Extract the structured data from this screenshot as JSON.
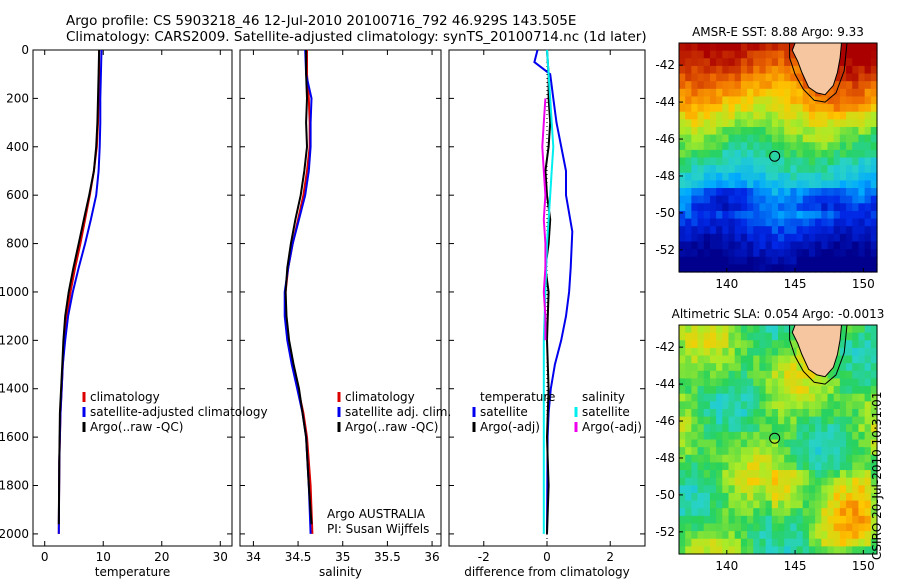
{
  "header": {
    "line1": "Argo profile: CS 5903218_46 12-Jul-2010 20100716_792 46.929S 143.505E",
    "line2": "Climatology: CARS2009. Satellite-adjusted climatology: synTS_20100714.nc (1d later)"
  },
  "side_label": "CSIRO 20-Jul-2010 10:31:01",
  "colors": {
    "clim": "#dd0000",
    "sat": "#0000ee",
    "argo": "#000000",
    "cyan": "#00eeee",
    "magenta": "#ee00ee"
  },
  "chart_data": [
    {
      "id": "temp",
      "type": "line",
      "xlabel": "temperature",
      "ylabel": "",
      "xlim": [
        -2,
        32
      ],
      "ylim": [
        2050,
        0
      ],
      "xticks": [
        "0",
        "10",
        "20",
        "30"
      ],
      "yticks": [
        "0",
        "200",
        "400",
        "600",
        "800",
        "1000",
        "1200",
        "1400",
        "1600",
        "1800",
        "2000"
      ],
      "legend": [
        "climatology",
        "satellite-adjusted climatology",
        "Argo(..raw -QC)"
      ],
      "series": [
        {
          "name": "climatology",
          "color": "clim",
          "x": [
            9.3,
            9.3,
            9.2,
            9.1,
            8.9,
            8.4,
            7.7,
            6.9,
            6.1,
            5.2,
            4.4,
            3.8,
            3.4,
            3.1,
            2.9,
            2.7,
            2.5,
            2.4
          ],
          "y": [
            0,
            100,
            200,
            300,
            400,
            500,
            600,
            700,
            800,
            900,
            1000,
            1100,
            1200,
            1300,
            1400,
            1500,
            1700,
            2000
          ]
        },
        {
          "name": "satellite",
          "color": "sat",
          "x": [
            9.7,
            9.6,
            9.5,
            9.5,
            9.4,
            9.2,
            8.8,
            7.9,
            6.9,
            5.8,
            4.8,
            4.0,
            3.5,
            3.1,
            2.9,
            2.7,
            2.5,
            2.4
          ],
          "y": [
            0,
            100,
            200,
            300,
            400,
            500,
            600,
            700,
            800,
            900,
            1000,
            1100,
            1200,
            1300,
            1400,
            1500,
            1700,
            2000
          ]
        },
        {
          "name": "argo",
          "color": "argo",
          "x": [
            9.3,
            9.2,
            9.1,
            9.0,
            8.8,
            8.4,
            7.6,
            6.7,
            5.8,
            4.9,
            4.1,
            3.5,
            3.2,
            3.0,
            2.8,
            2.6,
            2.5,
            2.4
          ],
          "y": [
            0,
            100,
            200,
            300,
            400,
            500,
            600,
            700,
            800,
            900,
            1000,
            1100,
            1200,
            1300,
            1400,
            1500,
            1700,
            1960
          ]
        }
      ]
    },
    {
      "id": "sal",
      "type": "line",
      "xlabel": "salinity",
      "ylabel": "",
      "xlim": [
        33.85,
        36.1
      ],
      "ylim": [
        2050,
        0
      ],
      "xticks": [
        "34",
        "34.5",
        "35",
        "35.5",
        "36"
      ],
      "legend": [
        "climatology",
        "satellite adj. clim.",
        "Argo(..raw -QC)"
      ],
      "annotations": [
        "Argo AUSTRALIA",
        "PI: Susan Wijffels"
      ],
      "series": [
        {
          "name": "climatology",
          "color": "clim",
          "x": [
            34.6,
            34.6,
            34.62,
            34.63,
            34.63,
            34.6,
            34.56,
            34.5,
            34.44,
            34.39,
            34.36,
            34.36,
            34.39,
            34.44,
            34.5,
            34.56,
            34.6,
            34.64,
            34.66
          ],
          "y": [
            0,
            100,
            200,
            300,
            400,
            500,
            600,
            700,
            800,
            900,
            1000,
            1100,
            1200,
            1300,
            1400,
            1500,
            1600,
            1800,
            2000
          ]
        },
        {
          "name": "satellite",
          "color": "sat",
          "x": [
            34.58,
            34.59,
            34.65,
            34.64,
            34.64,
            34.62,
            34.58,
            34.51,
            34.44,
            34.39,
            34.35,
            34.35,
            34.38,
            34.43,
            34.49,
            34.55,
            34.59,
            34.62,
            34.64
          ],
          "y": [
            0,
            100,
            200,
            300,
            400,
            500,
            600,
            700,
            800,
            900,
            1000,
            1100,
            1200,
            1300,
            1400,
            1500,
            1600,
            1800,
            2000
          ]
        },
        {
          "name": "argo",
          "color": "argo",
          "x": [
            34.59,
            34.59,
            34.6,
            34.59,
            34.6,
            34.57,
            34.53,
            34.47,
            34.42,
            34.38,
            34.36,
            34.37,
            34.4,
            34.45,
            34.51,
            34.55,
            34.59,
            34.62,
            34.65
          ],
          "y": [
            0,
            100,
            200,
            300,
            400,
            500,
            600,
            700,
            800,
            900,
            1000,
            1100,
            1200,
            1300,
            1400,
            1500,
            1600,
            1800,
            1960
          ]
        }
      ]
    },
    {
      "id": "diff",
      "type": "line",
      "xlabel": "difference from climatology",
      "ylabel": "",
      "xlim": [
        -3.1,
        3.1
      ],
      "ylim": [
        2050,
        0
      ],
      "xticks": [
        "-2",
        "0",
        "2"
      ],
      "legend_left": [
        "temperature",
        "satellite",
        "Argo(-adj)"
      ],
      "legend_right": [
        "salinity",
        "satellite",
        "Argo(-adj)"
      ],
      "series": [
        {
          "name": "temperature satellite",
          "color": "sat",
          "x": [
            -0.3,
            -0.4,
            0.1,
            0.2,
            0.3,
            0.6,
            0.6,
            0.8,
            0.75,
            0.7,
            0.6,
            0.45,
            0.25,
            0.12,
            0.05,
            0.02,
            0.01,
            0.0
          ],
          "y": [
            0,
            50,
            100,
            200,
            300,
            500,
            600,
            750,
            900,
            1000,
            1100,
            1200,
            1300,
            1400,
            1500,
            1600,
            1800,
            2000
          ]
        },
        {
          "name": "temperature Argo",
          "color": "argo",
          "x": [
            0.0,
            0.05,
            0.05,
            0.1,
            0.05,
            -0.05,
            0.0,
            0.1,
            0.05,
            -0.05,
            0.05,
            0.0,
            0.05,
            0.0,
            0.05,
            0.0
          ],
          "y": [
            0,
            100,
            200,
            300,
            400,
            500,
            600,
            700,
            800,
            900,
            1000,
            1200,
            1400,
            1600,
            1800,
            2000
          ]
        },
        {
          "name": "salinity satellite",
          "color": "cyan",
          "x": [
            0.0,
            0.05,
            0.1,
            0.15,
            0.2,
            0.15,
            0.1,
            0.05,
            0.0,
            -0.05,
            -0.1,
            -0.1,
            -0.1,
            -0.1
          ],
          "y": [
            0,
            100,
            200,
            300,
            400,
            500,
            600,
            700,
            800,
            1000,
            1200,
            1400,
            1600,
            2000
          ]
        },
        {
          "name": "salinity Argo",
          "color": "magenta",
          "x": [
            -0.05,
            -0.1,
            -0.15,
            -0.1,
            -0.05,
            -0.1,
            -0.05,
            -0.05,
            -0.1,
            -0.05,
            -0.05
          ],
          "y": [
            200,
            300,
            400,
            500,
            600,
            700,
            800,
            900,
            1000,
            1100,
            1200
          ]
        }
      ]
    },
    {
      "id": "sst",
      "type": "heatmap",
      "title": "AMSR-E SST: 8.88 Argo: 9.33",
      "xlim": [
        136.5,
        151.0
      ],
      "ylim": [
        -53.2,
        -40.8
      ],
      "xticks": [
        "140",
        "145",
        "150"
      ],
      "yticks": [
        "-42",
        "-44",
        "-46",
        "-48",
        "-50",
        "-52"
      ],
      "marker": {
        "lon": 143.505,
        "lat": -46.929
      }
    },
    {
      "id": "sla",
      "type": "heatmap",
      "title": "Altimetric SLA: 0.054 Argo: -0.0013",
      "xlim": [
        136.5,
        151.0
      ],
      "ylim": [
        -53.2,
        -40.8
      ],
      "xticks": [
        "140",
        "145",
        "150"
      ],
      "yticks": [
        "-42",
        "-44",
        "-46",
        "-48",
        "-50",
        "-52"
      ],
      "marker": {
        "lon": 143.505,
        "lat": -46.929
      }
    }
  ]
}
